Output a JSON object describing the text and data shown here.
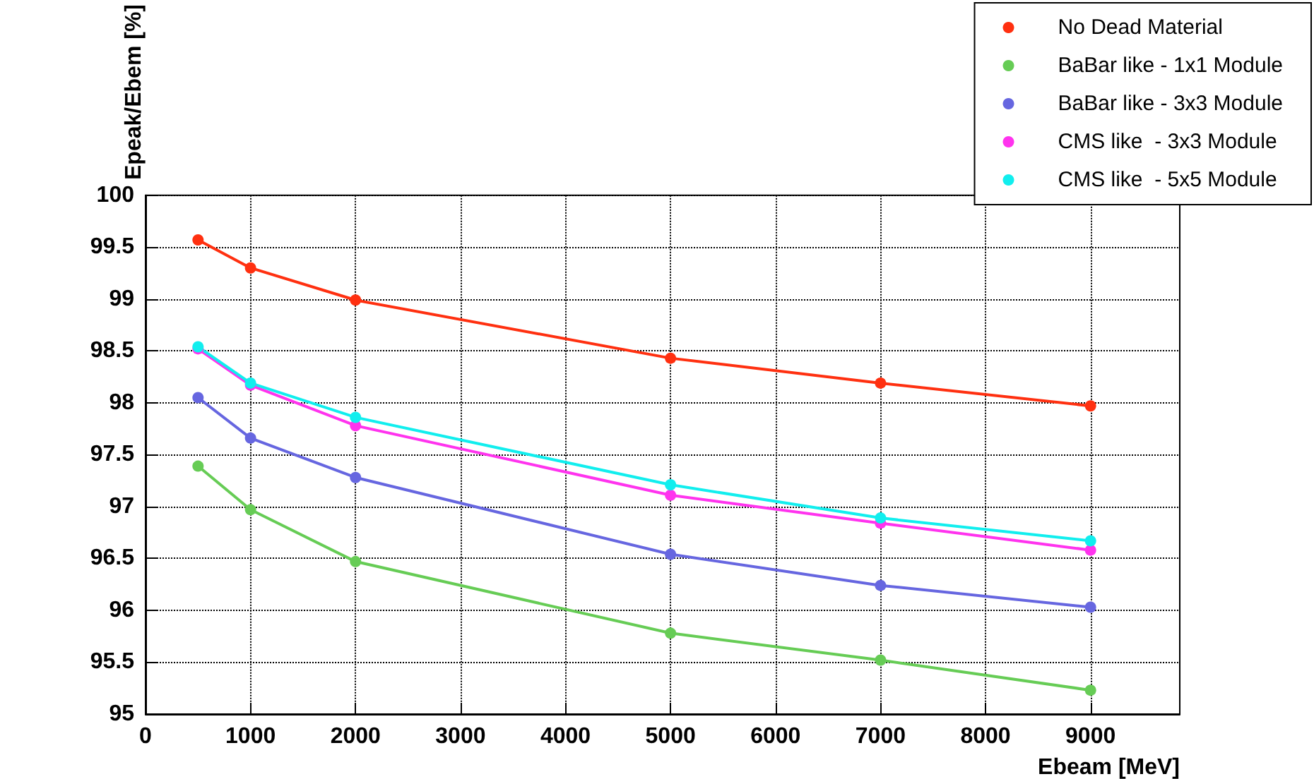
{
  "chart_data": {
    "type": "line",
    "xlabel": "Ebeam [MeV]",
    "ylabel": "Epeak/Ebem [%]",
    "x": [
      500,
      1000,
      2000,
      5000,
      7000,
      9000
    ],
    "xlim": [
      0,
      9850
    ],
    "xticks": [
      0,
      1000,
      2000,
      3000,
      4000,
      5000,
      6000,
      7000,
      8000,
      9000
    ],
    "ylim": [
      95,
      100
    ],
    "yticks": [
      95,
      95.5,
      96,
      96.5,
      97,
      97.5,
      98,
      98.5,
      99,
      99.5,
      100
    ],
    "grid": true,
    "legend": "top right",
    "marker": "circle",
    "line_style": "solid",
    "series": [
      {
        "name": "No Dead Material",
        "color": "#ff3010",
        "values": [
          99.57,
          99.3,
          98.99,
          98.43,
          98.19,
          97.97
        ]
      },
      {
        "name": "BaBar like - 1x1 Module",
        "color": "#66cc55",
        "values": [
          97.39,
          96.97,
          96.47,
          95.78,
          95.52,
          95.23
        ]
      },
      {
        "name": "BaBar like - 3x3 Module",
        "color": "#6666e0",
        "values": [
          98.05,
          97.66,
          97.28,
          96.54,
          96.24,
          96.03
        ]
      },
      {
        "name": "CMS like  - 3x3 Module",
        "color": "#ff33ee",
        "values": [
          98.52,
          98.17,
          97.78,
          97.11,
          96.84,
          96.58
        ]
      },
      {
        "name": "CMS like  - 5x5 Module",
        "color": "#11eeee",
        "values": [
          98.54,
          98.19,
          97.86,
          97.21,
          96.89,
          96.67
        ]
      }
    ]
  }
}
